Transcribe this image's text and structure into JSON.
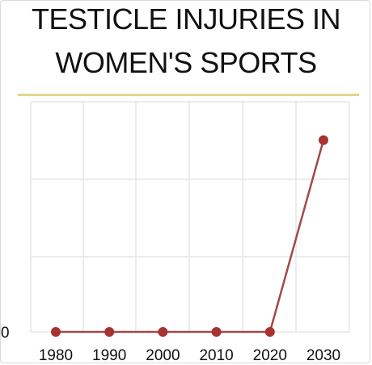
{
  "title_lines": [
    "TESTICLE INJURIES IN",
    "WOMEN'S SPORTS"
  ],
  "colors": {
    "line": "#a04a4a",
    "marker": "#a83232",
    "grid": "#e6e6e6",
    "rule": "#e0d78a",
    "text": "#111111"
  },
  "chart_data": {
    "type": "line",
    "title": "TESTICLE INJURIES IN WOMEN'S SPORTS",
    "xlabel": "",
    "ylabel": "",
    "x": [
      1980,
      1990,
      2000,
      2010,
      2020,
      2030
    ],
    "x_tick_labels": [
      "1980",
      "1990",
      "2000",
      "2010",
      "2020",
      "2030"
    ],
    "y_tick_labels": [
      "0"
    ],
    "series": [
      {
        "values": [
          0,
          0,
          0,
          0,
          0,
          3
        ]
      }
    ],
    "ylim": [
      0,
      3.6
    ],
    "grid": true,
    "legend": "none"
  }
}
